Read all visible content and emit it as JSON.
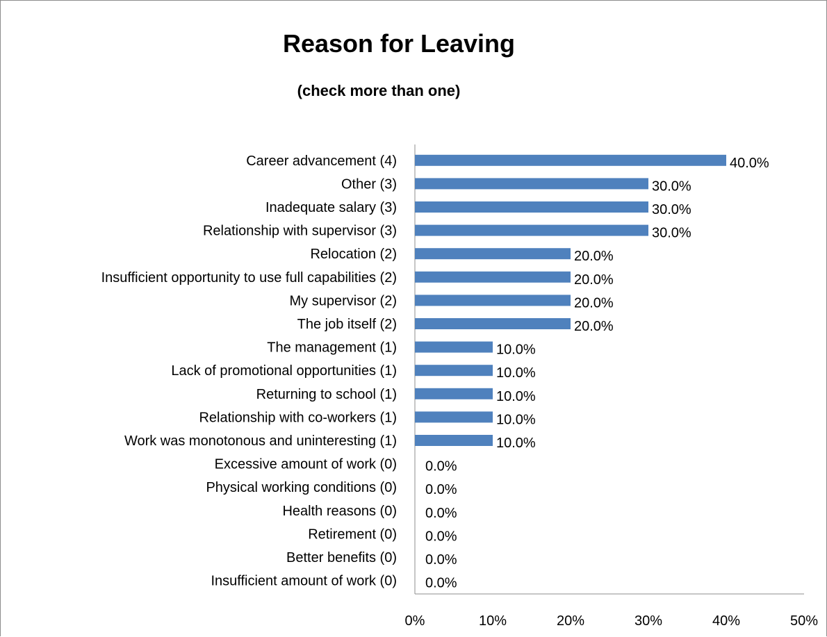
{
  "chart_data": {
    "type": "bar",
    "orientation": "horizontal",
    "title": "Reason for Leaving",
    "subtitle": "(check more than one)",
    "categories": [
      "Career advancement (4)",
      "Other (3)",
      "Inadequate salary (3)",
      "Relationship with supervisor (3)",
      "Relocation (2)",
      "Insufficient opportunity to use full capabilities (2)",
      "My supervisor (2)",
      "The job itself (2)",
      "The management (1)",
      "Lack of promotional opportunities (1)",
      "Returning to school (1)",
      "Relationship with co-workers (1)",
      "Work was monotonous and uninteresting (1)",
      "Excessive amount of work  (0)",
      "Physical working conditions (0)",
      "Health reasons (0)",
      "Retirement (0)",
      "Better benefits (0)",
      "Insufficient amount of work  (0)"
    ],
    "values": [
      40,
      30,
      30,
      30,
      20,
      20,
      20,
      20,
      10,
      10,
      10,
      10,
      10,
      0,
      0,
      0,
      0,
      0,
      0
    ],
    "data_labels": [
      "40.0%",
      "30.0%",
      "30.0%",
      "30.0%",
      "20.0%",
      "20.0%",
      "20.0%",
      "20.0%",
      "10.0%",
      "10.0%",
      "10.0%",
      "10.0%",
      "10.0%",
      "0.0%",
      "0.0%",
      "0.0%",
      "0.0%",
      "0.0%",
      "0.0%"
    ],
    "xlim": [
      0,
      50
    ],
    "x_ticks": [
      "0%",
      "10%",
      "20%",
      "30%",
      "40%",
      "50%"
    ],
    "xlabel": "",
    "ylabel": "",
    "grid": false,
    "legend": "none",
    "bar_color": "#4f81bd"
  }
}
